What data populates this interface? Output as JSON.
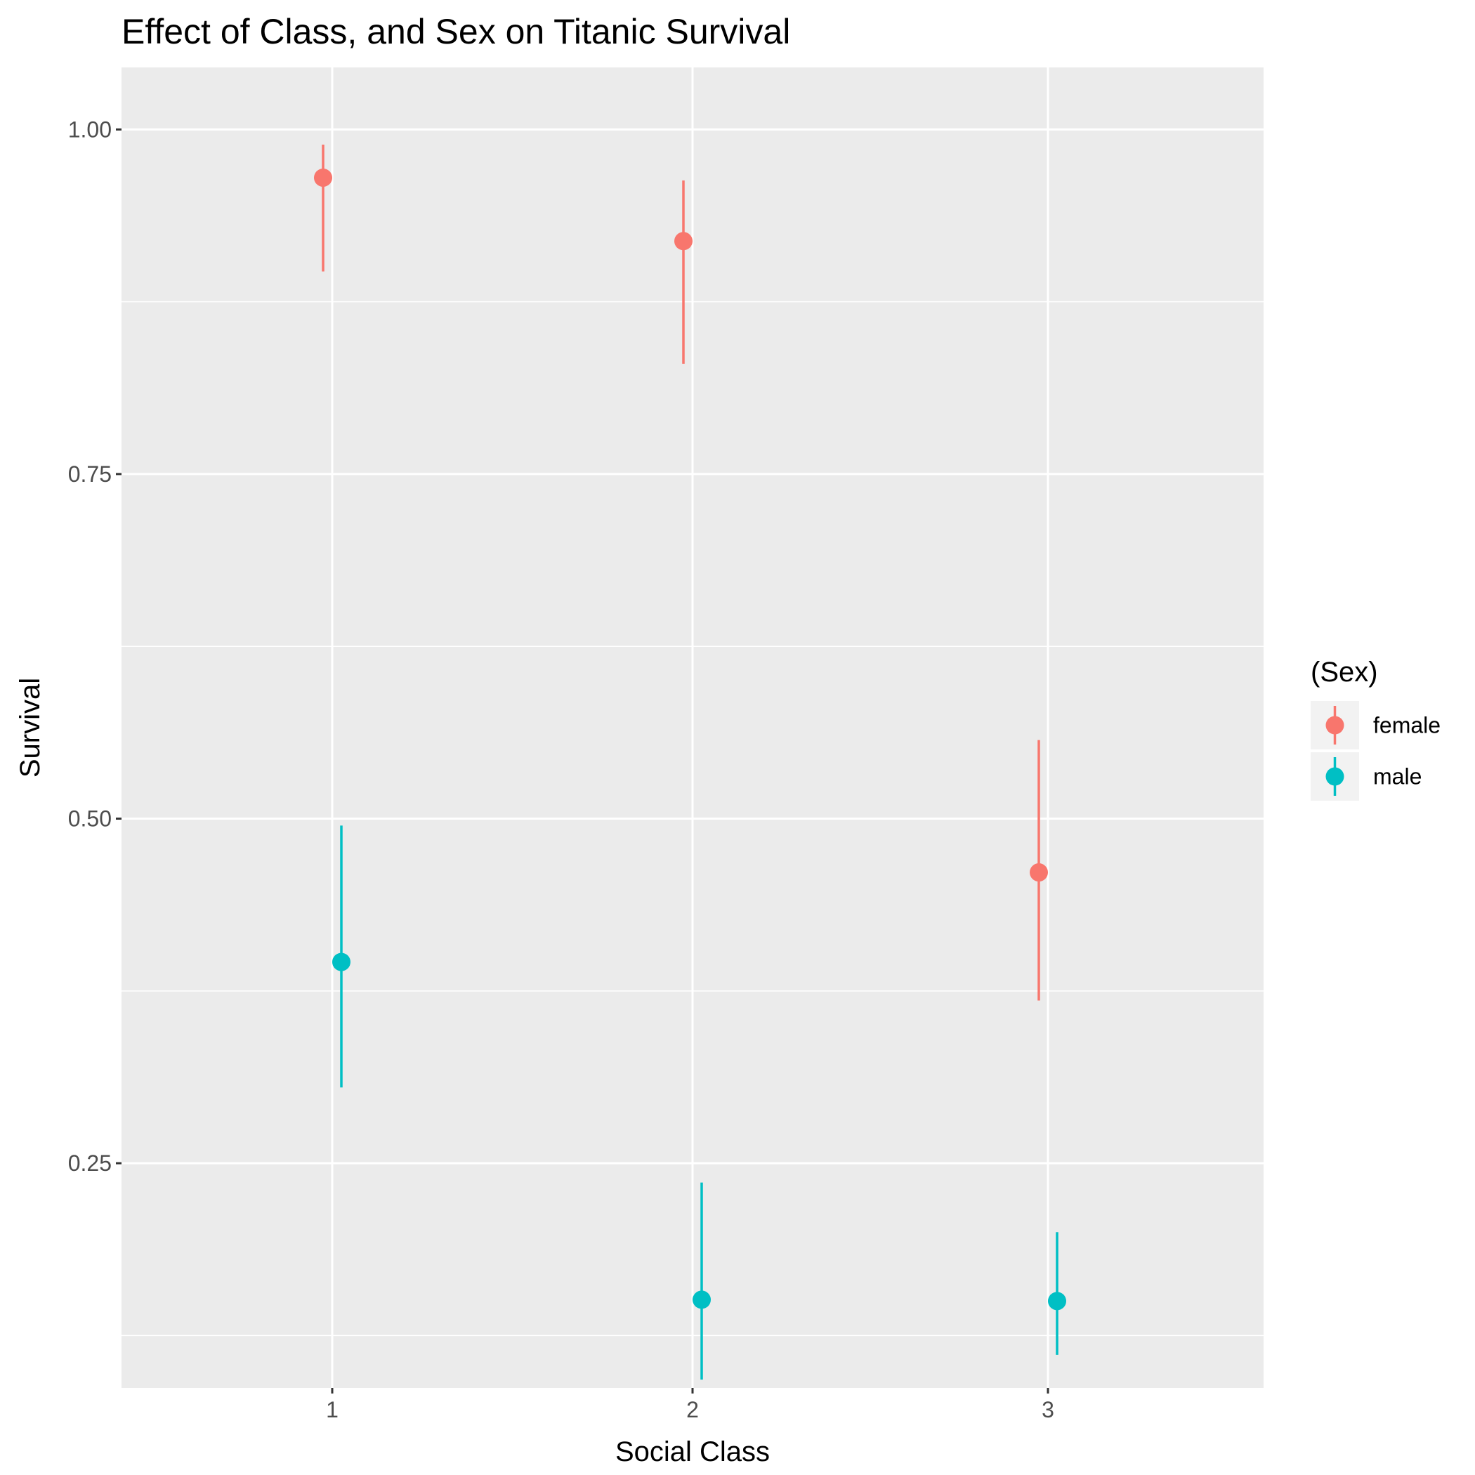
{
  "chart_data": {
    "type": "scatter",
    "title": "Effect of Class, and Sex on Titanic Survival",
    "xlabel": "Social Class",
    "ylabel": "Survival",
    "x_categories": [
      "1",
      "2",
      "3"
    ],
    "y_ticks": [
      0.25,
      0.5,
      0.75,
      1.0
    ],
    "y_tick_labels": [
      "0.25",
      "0.50",
      "0.75",
      "1.00"
    ],
    "ylim": [
      0.087,
      1.045
    ],
    "grid": true,
    "legend_title": "(Sex)",
    "legend_position": "right",
    "series": [
      {
        "name": "female",
        "color": "#F8766D",
        "points": [
          {
            "x": "1",
            "y": 0.965,
            "lower": 0.897,
            "upper": 0.989
          },
          {
            "x": "2",
            "y": 0.919,
            "lower": 0.83,
            "upper": 0.963
          },
          {
            "x": "3",
            "y": 0.461,
            "lower": 0.368,
            "upper": 0.557
          }
        ]
      },
      {
        "name": "male",
        "color": "#00BFC4",
        "points": [
          {
            "x": "1",
            "y": 0.396,
            "lower": 0.305,
            "upper": 0.495
          },
          {
            "x": "2",
            "y": 0.151,
            "lower": 0.093,
            "upper": 0.236
          },
          {
            "x": "3",
            "y": 0.15,
            "lower": 0.111,
            "upper": 0.2
          }
        ]
      }
    ]
  }
}
